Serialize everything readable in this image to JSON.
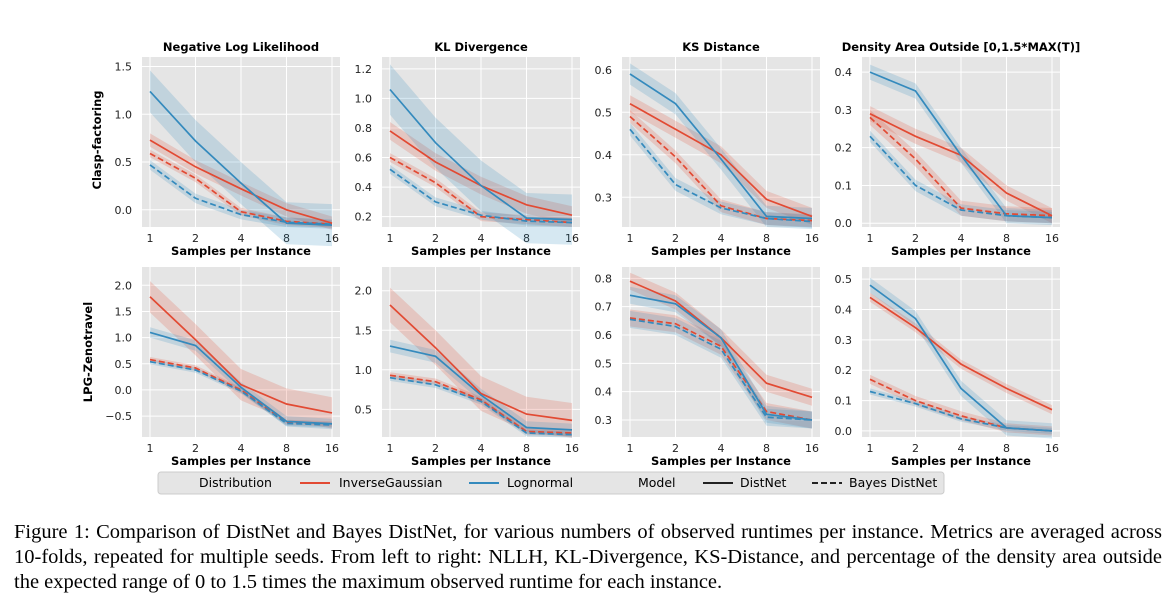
{
  "figure": {
    "caption": "Figure 1: Comparison of DistNet and Bayes DistNet, for various numbers of observed runtimes per instance. Metrics are averaged across 10-folds, repeated for multiple seeds. From left to right: NLLH, KL-Divergence, KS-Distance, and percentage of the density area outside the expected range of 0 to 1.5 times the maximum observed runtime for each instance."
  },
  "colors": {
    "InverseGaussian": "#e24a33",
    "Lognormal": "#348abd",
    "plot_bg": "#e5e5e5",
    "grid": "#ffffff"
  },
  "legend": {
    "distribution_header": "Distribution",
    "inverse_gaussian": "InverseGaussian",
    "lognormal": "Lognormal",
    "model_header": "Model",
    "distnet": "DistNet",
    "bayes_distnet": "Bayes DistNet"
  },
  "chart_data": {
    "type": "line",
    "x": [
      1,
      2,
      4,
      8,
      16
    ],
    "x_scale": "log2",
    "xlabel": "Samples per Instance",
    "row_labels": [
      "Clasp-factoring",
      "LPG-Zenotravel"
    ],
    "col_titles": [
      "Negative Log Likelihood",
      "KL Divergence",
      "KS Distance",
      "Density Area Outside [0,1.5*MAX(T)]"
    ],
    "panels": [
      {
        "row": 0,
        "col": 0,
        "ylim": [
          -0.18,
          1.6
        ],
        "yticks": [
          0.0,
          0.5,
          1.0,
          1.5
        ],
        "yticklabels": [
          "0.0",
          "0.5",
          "1.0",
          "1.5"
        ],
        "series": [
          {
            "name": "InverseGaussian DistNet",
            "dist": "InverseGaussian",
            "model": "DistNet",
            "values": [
              0.73,
              0.45,
              0.22,
              0.0,
              -0.14
            ],
            "band": 0.07
          },
          {
            "name": "InverseGaussian Bayes DistNet",
            "dist": "InverseGaussian",
            "model": "Bayes DistNet",
            "values": [
              0.59,
              0.33,
              -0.02,
              -0.12,
              -0.15
            ],
            "band": 0.04
          },
          {
            "name": "Lognormal DistNet",
            "dist": "Lognormal",
            "model": "DistNet",
            "values": [
              1.24,
              0.72,
              0.28,
              -0.14,
              -0.16
            ],
            "band": 0.22
          },
          {
            "name": "Lognormal Bayes DistNet",
            "dist": "Lognormal",
            "model": "Bayes DistNet",
            "values": [
              0.47,
              0.12,
              -0.05,
              -0.13,
              -0.15
            ],
            "band": 0.05
          }
        ]
      },
      {
        "row": 0,
        "col": 1,
        "ylim": [
          0.13,
          1.28
        ],
        "yticks": [
          0.2,
          0.4,
          0.6,
          0.8,
          1.0,
          1.2
        ],
        "yticklabels": [
          "0.2",
          "0.4",
          "0.6",
          "0.8",
          "1.0",
          "1.2"
        ],
        "series": [
          {
            "name": "InverseGaussian DistNet",
            "dist": "InverseGaussian",
            "model": "DistNet",
            "values": [
              0.78,
              0.57,
              0.41,
              0.28,
              0.21
            ],
            "band": 0.06
          },
          {
            "name": "InverseGaussian Bayes DistNet",
            "dist": "InverseGaussian",
            "model": "Bayes DistNet",
            "values": [
              0.6,
              0.43,
              0.2,
              0.18,
              0.16
            ],
            "band": 0.03
          },
          {
            "name": "Lognormal DistNet",
            "dist": "Lognormal",
            "model": "DistNet",
            "values": [
              1.06,
              0.7,
              0.41,
              0.19,
              0.18
            ],
            "band": 0.17
          },
          {
            "name": "Lognormal Bayes DistNet",
            "dist": "Lognormal",
            "model": "Bayes DistNet",
            "values": [
              0.52,
              0.3,
              0.21,
              0.17,
              0.16
            ],
            "band": 0.03
          }
        ]
      },
      {
        "row": 0,
        "col": 2,
        "ylim": [
          0.23,
          0.63
        ],
        "yticks": [
          0.3,
          0.4,
          0.5,
          0.6
        ],
        "yticklabels": [
          "0.3",
          "0.4",
          "0.5",
          "0.6"
        ],
        "series": [
          {
            "name": "InverseGaussian DistNet",
            "dist": "InverseGaussian",
            "model": "DistNet",
            "values": [
              0.52,
              0.46,
              0.4,
              0.295,
              0.255
            ],
            "band": 0.02
          },
          {
            "name": "InverseGaussian Bayes DistNet",
            "dist": "InverseGaussian",
            "model": "Bayes DistNet",
            "values": [
              0.49,
              0.395,
              0.28,
              0.25,
              0.245
            ],
            "band": 0.015
          },
          {
            "name": "Lognormal DistNet",
            "dist": "Lognormal",
            "model": "DistNet",
            "values": [
              0.59,
              0.52,
              0.39,
              0.255,
              0.25
            ],
            "band": 0.025
          },
          {
            "name": "Lognormal Bayes DistNet",
            "dist": "Lognormal",
            "model": "Bayes DistNet",
            "values": [
              0.46,
              0.33,
              0.275,
              0.25,
              0.243
            ],
            "band": 0.015
          }
        ]
      },
      {
        "row": 0,
        "col": 3,
        "ylim": [
          -0.01,
          0.44
        ],
        "yticks": [
          0.0,
          0.1,
          0.2,
          0.3,
          0.4
        ],
        "yticklabels": [
          "0.0",
          "0.1",
          "0.2",
          "0.3",
          "0.4"
        ],
        "series": [
          {
            "name": "InverseGaussian DistNet",
            "dist": "InverseGaussian",
            "model": "DistNet",
            "values": [
              0.29,
              0.23,
              0.18,
              0.08,
              0.02
            ],
            "band": 0.02
          },
          {
            "name": "InverseGaussian Bayes DistNet",
            "dist": "InverseGaussian",
            "model": "Bayes DistNet",
            "values": [
              0.28,
              0.17,
              0.04,
              0.025,
              0.02
            ],
            "band": 0.02
          },
          {
            "name": "Lognormal DistNet",
            "dist": "Lognormal",
            "model": "DistNet",
            "values": [
              0.4,
              0.35,
              0.18,
              0.02,
              0.015
            ],
            "band": 0.02
          },
          {
            "name": "Lognormal Bayes DistNet",
            "dist": "Lognormal",
            "model": "Bayes DistNet",
            "values": [
              0.23,
              0.1,
              0.035,
              0.02,
              0.015
            ],
            "band": 0.015
          }
        ]
      },
      {
        "row": 1,
        "col": 0,
        "ylim": [
          -0.9,
          2.35
        ],
        "yticks": [
          -0.5,
          0.0,
          0.5,
          1.0,
          1.5,
          2.0
        ],
        "yticklabels": [
          "−0.5",
          "0.0",
          "0.5",
          "1.0",
          "1.5",
          "2.0"
        ],
        "series": [
          {
            "name": "InverseGaussian DistNet",
            "dist": "InverseGaussian",
            "model": "DistNet",
            "values": [
              1.78,
              0.96,
              0.1,
              -0.27,
              -0.44
            ],
            "band": 0.3
          },
          {
            "name": "InverseGaussian Bayes DistNet",
            "dist": "InverseGaussian",
            "model": "Bayes DistNet",
            "values": [
              0.58,
              0.42,
              0.0,
              -0.62,
              -0.65
            ],
            "band": 0.05
          },
          {
            "name": "Lognormal DistNet",
            "dist": "Lognormal",
            "model": "DistNet",
            "values": [
              1.1,
              0.85,
              0.05,
              -0.6,
              -0.65
            ],
            "band": 0.1
          },
          {
            "name": "Lognormal Bayes DistNet",
            "dist": "Lognormal",
            "model": "Bayes DistNet",
            "values": [
              0.54,
              0.38,
              -0.02,
              -0.64,
              -0.67
            ],
            "band": 0.05
          }
        ]
      },
      {
        "row": 1,
        "col": 1,
        "ylim": [
          0.15,
          2.3
        ],
        "yticks": [
          0.5,
          1.0,
          1.5,
          2.0
        ],
        "yticklabels": [
          "0.5",
          "1.0",
          "1.5",
          "2.0"
        ],
        "series": [
          {
            "name": "InverseGaussian DistNet",
            "dist": "InverseGaussian",
            "model": "DistNet",
            "values": [
              1.82,
              1.28,
              0.7,
              0.44,
              0.36
            ],
            "band": 0.22
          },
          {
            "name": "InverseGaussian Bayes DistNet",
            "dist": "InverseGaussian",
            "model": "Bayes DistNet",
            "values": [
              0.93,
              0.85,
              0.62,
              0.22,
              0.2
            ],
            "band": 0.04
          },
          {
            "name": "Lognormal DistNet",
            "dist": "Lognormal",
            "model": "DistNet",
            "values": [
              1.3,
              1.17,
              0.68,
              0.27,
              0.24
            ],
            "band": 0.08
          },
          {
            "name": "Lognormal Bayes DistNet",
            "dist": "Lognormal",
            "model": "Bayes DistNet",
            "values": [
              0.9,
              0.81,
              0.6,
              0.2,
              0.18
            ],
            "band": 0.04
          }
        ]
      },
      {
        "row": 1,
        "col": 2,
        "ylim": [
          0.24,
          0.84
        ],
        "yticks": [
          0.3,
          0.4,
          0.5,
          0.6,
          0.7,
          0.8
        ],
        "yticklabels": [
          "0.3",
          "0.4",
          "0.5",
          "0.6",
          "0.7",
          "0.8"
        ],
        "series": [
          {
            "name": "InverseGaussian DistNet",
            "dist": "InverseGaussian",
            "model": "DistNet",
            "values": [
              0.79,
              0.72,
              0.59,
              0.43,
              0.38
            ],
            "band": 0.03
          },
          {
            "name": "InverseGaussian Bayes DistNet",
            "dist": "InverseGaussian",
            "model": "Bayes DistNet",
            "values": [
              0.66,
              0.64,
              0.56,
              0.33,
              0.3
            ],
            "band": 0.03
          },
          {
            "name": "Lognormal DistNet",
            "dist": "Lognormal",
            "model": "DistNet",
            "values": [
              0.74,
              0.71,
              0.59,
              0.32,
              0.3
            ],
            "band": 0.03
          },
          {
            "name": "Lognormal Bayes DistNet",
            "dist": "Lognormal",
            "model": "Bayes DistNet",
            "values": [
              0.655,
              0.63,
              0.55,
              0.31,
              0.3
            ],
            "band": 0.03
          }
        ]
      },
      {
        "row": 1,
        "col": 3,
        "ylim": [
          -0.02,
          0.54
        ],
        "yticks": [
          0.0,
          0.1,
          0.2,
          0.3,
          0.4,
          0.5
        ],
        "yticklabels": [
          "0.0",
          "0.1",
          "0.2",
          "0.3",
          "0.4",
          "0.5"
        ],
        "series": [
          {
            "name": "InverseGaussian DistNet",
            "dist": "InverseGaussian",
            "model": "DistNet",
            "values": [
              0.44,
              0.34,
              0.22,
              0.14,
              0.07
            ],
            "band": 0.015
          },
          {
            "name": "InverseGaussian Bayes DistNet",
            "dist": "InverseGaussian",
            "model": "Bayes DistNet",
            "values": [
              0.17,
              0.1,
              0.05,
              0.01,
              0.0
            ],
            "band": 0.015
          },
          {
            "name": "Lognormal DistNet",
            "dist": "Lognormal",
            "model": "DistNet",
            "values": [
              0.48,
              0.37,
              0.14,
              0.01,
              0.0
            ],
            "band": 0.025
          },
          {
            "name": "Lognormal Bayes DistNet",
            "dist": "Lognormal",
            "model": "Bayes DistNet",
            "values": [
              0.13,
              0.09,
              0.04,
              0.01,
              0.0
            ],
            "band": 0.01
          }
        ]
      }
    ]
  }
}
